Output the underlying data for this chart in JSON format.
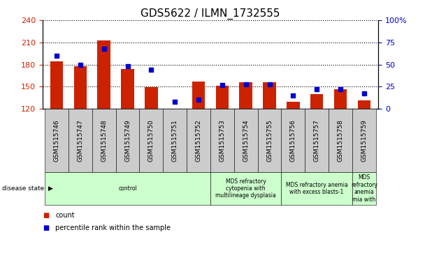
{
  "title": "GDS5622 / ILMN_1732555",
  "samples": [
    "GSM1515746",
    "GSM1515747",
    "GSM1515748",
    "GSM1515749",
    "GSM1515750",
    "GSM1515751",
    "GSM1515752",
    "GSM1515753",
    "GSM1515754",
    "GSM1515755",
    "GSM1515756",
    "GSM1515757",
    "GSM1515758",
    "GSM1515759"
  ],
  "counts": [
    184,
    178,
    213,
    174,
    149,
    120,
    157,
    151,
    156,
    156,
    130,
    140,
    147,
    131
  ],
  "percentiles": [
    60,
    50,
    68,
    48,
    44,
    8,
    10,
    27,
    28,
    28,
    15,
    22,
    22,
    17
  ],
  "ylim_left": [
    120,
    240
  ],
  "ylim_right": [
    0,
    100
  ],
  "yticks_left": [
    120,
    150,
    180,
    210,
    240
  ],
  "yticks_right": [
    0,
    25,
    50,
    75,
    100
  ],
  "bar_color": "#cc2200",
  "dot_color": "#0000cc",
  "bg_color": "#ffffff",
  "tick_bg_color": "#cccccc",
  "disease_group_color": "#ccffcc",
  "disease_groups": [
    {
      "label": "control",
      "start": 0,
      "end": 7
    },
    {
      "label": "MDS refractory\ncytopenia with\nmultilineage dysplasia",
      "start": 7,
      "end": 10
    },
    {
      "label": "MDS refractory anemia\nwith excess blasts-1",
      "start": 10,
      "end": 13
    },
    {
      "label": "MDS\nrefractory\nanemia\nmia with",
      "start": 13,
      "end": 14
    }
  ],
  "legend_count_label": "count",
  "legend_percentile_label": "percentile rank within the sample",
  "disease_state_label": "disease state",
  "left_tick_color": "#cc2200",
  "right_tick_color": "#0000cc",
  "title_fontsize": 11,
  "tick_fontsize": 8,
  "sample_fontsize": 6.5
}
